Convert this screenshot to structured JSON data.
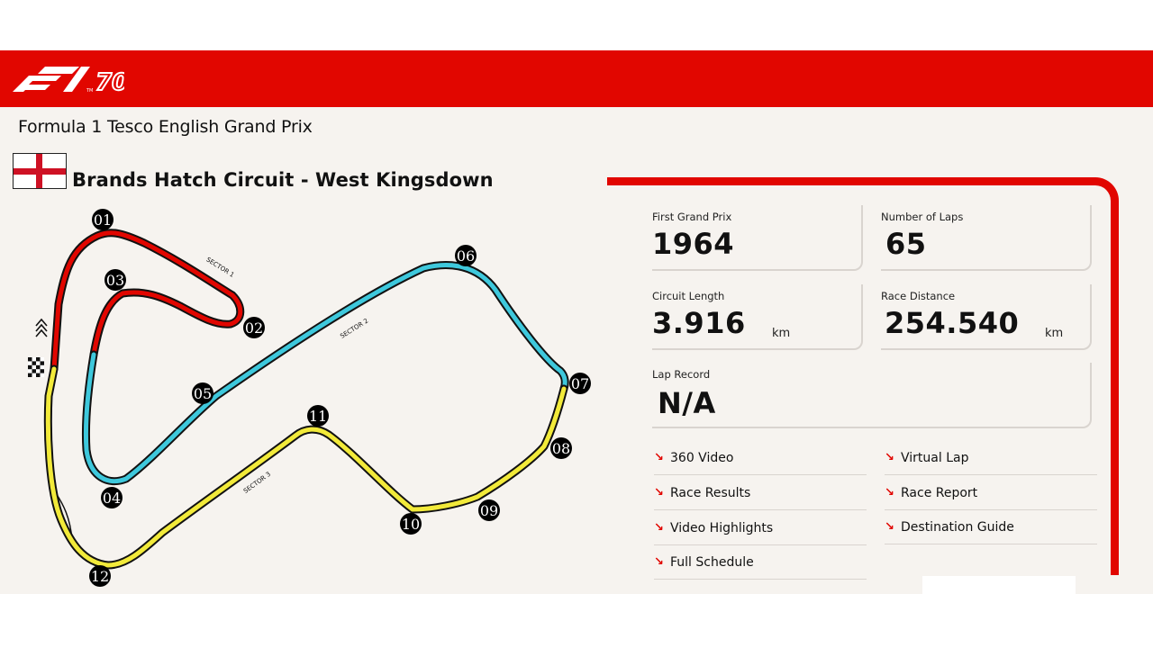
{
  "header": {
    "brand_color": "#e10600",
    "logo": "f1-70-logo"
  },
  "event": {
    "title": "Formula 1 Tesco English Grand Prix",
    "flag": "england-flag",
    "circuit_name": "Brands Hatch Circuit - West Kingsdown"
  },
  "track": {
    "sector_colors": {
      "sector1": "#e10600",
      "sector2": "#3ec8dc",
      "sector3": "#f2ea3a"
    },
    "sector_labels": [
      "SECTOR 1",
      "SECTOR 2",
      "SECTOR 3"
    ],
    "turns": [
      "01",
      "02",
      "03",
      "04",
      "05",
      "06",
      "07",
      "08",
      "09",
      "10",
      "11",
      "12"
    ],
    "icons": [
      "drs-chevron-icon",
      "chequered-flag-icon"
    ]
  },
  "stats": {
    "first_grand_prix": {
      "label": "First Grand Prix",
      "value": "1964"
    },
    "number_of_laps": {
      "label": "Number of Laps",
      "value": "65"
    },
    "circuit_length": {
      "label": "Circuit Length",
      "value": "3.916",
      "unit": "km"
    },
    "race_distance": {
      "label": "Race Distance",
      "value": "254.540",
      "unit": "km"
    },
    "lap_record": {
      "label": "Lap Record",
      "value": "N/A"
    }
  },
  "links": [
    {
      "label": "360 Video"
    },
    {
      "label": "Virtual Lap"
    },
    {
      "label": "Race Results"
    },
    {
      "label": "Race Report"
    },
    {
      "label": "Video Highlights"
    },
    {
      "label": "Destination Guide"
    },
    {
      "label": "Full Schedule"
    }
  ]
}
